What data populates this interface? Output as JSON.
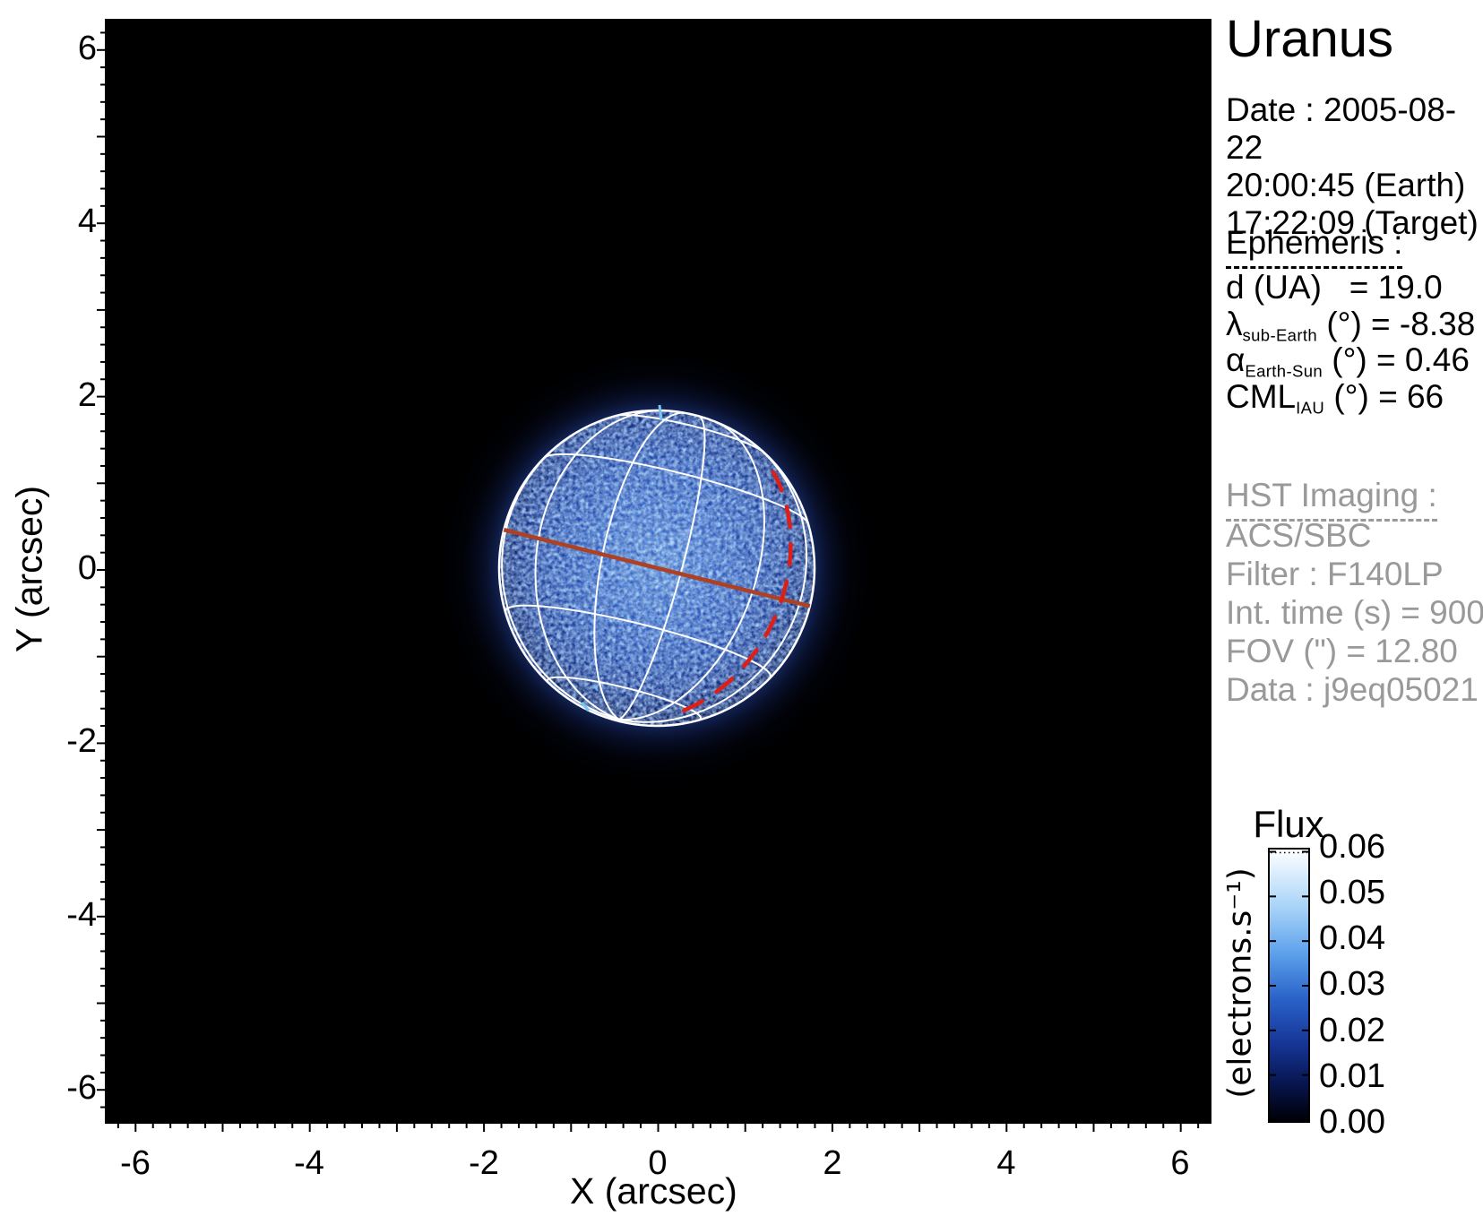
{
  "header": {
    "title": "Uranus"
  },
  "date_block": {
    "lines": [
      "Date : 2005-08-22",
      "20:00:45 (Earth)",
      "17:22:09 (Target)"
    ]
  },
  "ephemeris": {
    "heading": "Ephemeris :",
    "rows": [
      {
        "sym": "d (UA)",
        "sub": "",
        "rest": "   = 19.0"
      },
      {
        "sym": "λ",
        "sub": "sub-Earth",
        "rest": " (°) = -8.38"
      },
      {
        "sym": "α",
        "sub": "Earth-Sun",
        "rest": " (°) = 0.46"
      },
      {
        "sym": "CML",
        "sub": "IAU",
        "rest": " (°) = 66"
      }
    ]
  },
  "hst": {
    "heading": "HST Imaging :",
    "lines": [
      "ACS/SBC",
      "Filter : F140LP",
      "Int. time (s) = 900",
      "FOV (\") = 12.80",
      "Data : j9eq05021"
    ]
  },
  "axes": {
    "x_label": "X (arcsec)",
    "y_label": "Y (arcsec)",
    "x_tick_labels": [
      "-6",
      "-4",
      "-2",
      "0",
      "2",
      "4",
      "6"
    ],
    "y_tick_labels": [
      "6",
      "4",
      "2",
      "0",
      "-2",
      "-4",
      "-6"
    ]
  },
  "colorbar": {
    "title": "Flux",
    "unit": "(electrons.s⁻¹)",
    "tick_labels": [
      "0.06",
      "0.05",
      "0.04",
      "0.03",
      "0.02",
      "0.01",
      "0.00"
    ]
  },
  "chart_data": {
    "type": "heatmap",
    "title": "Uranus",
    "xlabel": "X (arcsec)",
    "ylabel": "Y (arcsec)",
    "xlim": [
      -6.35,
      6.35
    ],
    "ylim": [
      -6.35,
      6.35
    ],
    "x_ticks": [
      -6,
      -4,
      -2,
      0,
      2,
      4,
      6
    ],
    "y_ticks": [
      6,
      4,
      2,
      0,
      -2,
      -4,
      -6
    ],
    "minor_tick_step": 0.2,
    "background_flux": 0.0,
    "colorbar": {
      "title": "Flux",
      "unit": "electrons/s",
      "min": 0.0,
      "max": 0.06,
      "ticks": [
        0.06,
        0.05,
        0.04,
        0.03,
        0.02,
        0.01,
        0.0
      ]
    },
    "disk": {
      "center_x_arcsec": 0.0,
      "center_y_arcsec": 0.0,
      "radius_arcsec": 1.81,
      "mean_flux": 0.035,
      "peak_flux": 0.055
    },
    "overlay": {
      "grid_rotation_deg": 14,
      "subobserver_latitude_deg": -8.38,
      "central_meridian_longitude_deg": 66,
      "meridian_longitude_offsets_deg": [
        -81,
        -51,
        -21,
        9,
        39,
        69
      ],
      "parallel_latitudes_deg": [
        -60,
        -30,
        30,
        60
      ],
      "grid_color": "#ffffff",
      "equator_line_color": "#ad4124",
      "dashed_meridian_offset_deg": 55,
      "dashed_meridian_lat_range_deg": [
        -62,
        46
      ],
      "dashed_line_color": "#df1f16",
      "pole_marker_color": "#7cc4f2"
    }
  }
}
